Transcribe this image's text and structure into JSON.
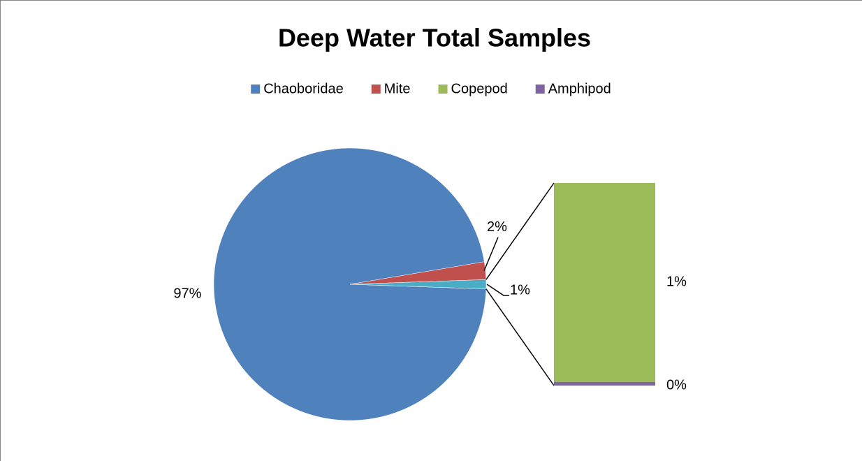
{
  "chart_data": {
    "type": "bar-of-pie",
    "title": "Deep Water Total Samples",
    "series": [
      {
        "name": "Chaoboridae",
        "color": "#4f81bd"
      },
      {
        "name": "Mite",
        "color": "#c0504d"
      },
      {
        "name": "Copepod",
        "color": "#9bbb59"
      },
      {
        "name": "Amphipod",
        "color": "#8064a2"
      }
    ],
    "values": [
      96.8,
      2.1,
      1.08,
      0.02
    ],
    "value_labels": [
      "97%",
      "2%",
      "1%",
      "0%"
    ],
    "bar_of_pie_count": 2,
    "other_color": "#4bacc6",
    "other_value_label": "1%",
    "legend": "top"
  }
}
